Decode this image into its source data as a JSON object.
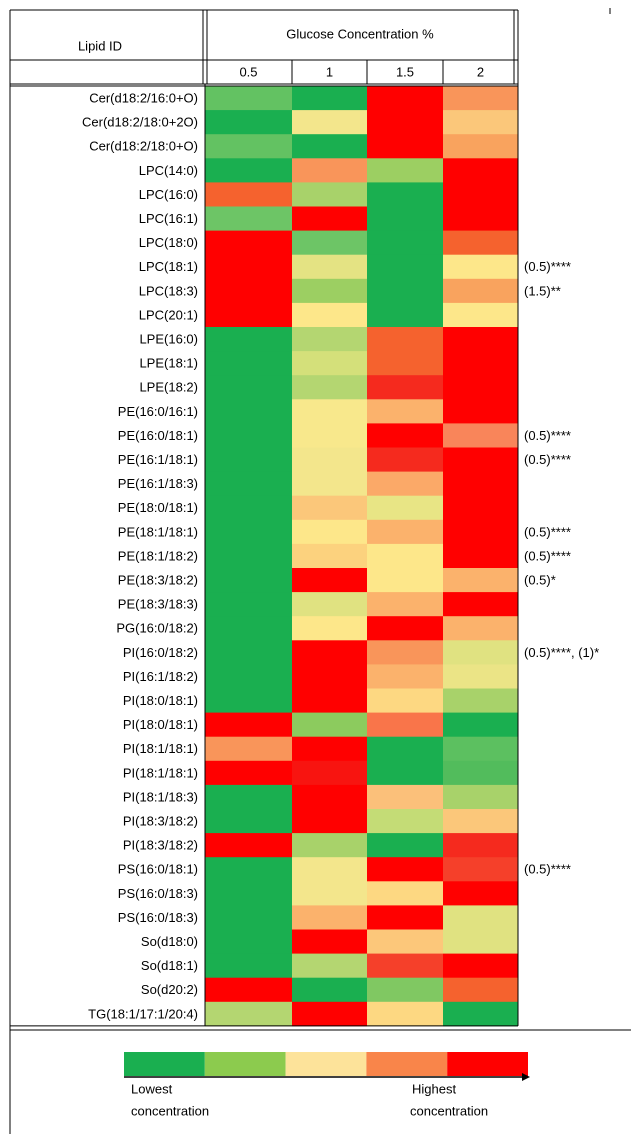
{
  "header": {
    "lipid_id": "Lipid ID",
    "group": "Glucose Concentration %",
    "columns": [
      "0.5",
      "1",
      "1.5",
      "2"
    ]
  },
  "rows": [
    {
      "lipid": "Cer(d18:2/16:0+O)",
      "colors": [
        "#63c262",
        "#1aaf50",
        "#ff0000",
        "#f9955a"
      ]
    },
    {
      "lipid": "Cer(d18:2/18:0+2O)",
      "colors": [
        "#1aaf50",
        "#f3e68c",
        "#ff0000",
        "#fbc77a"
      ]
    },
    {
      "lipid": "Cer(d18:2/18:0+O)",
      "colors": [
        "#63c262",
        "#1aaf50",
        "#ff0000",
        "#f9a35e"
      ]
    },
    {
      "lipid": "LPC(14:0)",
      "colors": [
        "#1aaf50",
        "#f9955a",
        "#9ccf62",
        "#ff0000"
      ]
    },
    {
      "lipid": "LPC(16:0)",
      "colors": [
        "#f5622e",
        "#a8d26a",
        "#1aaf50",
        "#ff0000"
      ]
    },
    {
      "lipid": "LPC(16:1)",
      "colors": [
        "#6dc566",
        "#ff0000",
        "#1aaf50",
        "#ff0000"
      ]
    },
    {
      "lipid": "LPC(18:0)",
      "colors": [
        "#ff0000",
        "#6dc566",
        "#1aaf50",
        "#f5622e"
      ]
    },
    {
      "lipid": "LPC(18:1)",
      "colors": [
        "#ff0000",
        "#e4e383",
        "#1aaf50",
        "#fde78a"
      ],
      "note": "(0.5)****"
    },
    {
      "lipid": "LPC(18:3)",
      "colors": [
        "#ff0000",
        "#9ccf62",
        "#1aaf50",
        "#f9a35e"
      ],
      "note": "(1.5)**"
    },
    {
      "lipid": "LPC(20:1)",
      "colors": [
        "#ff0000",
        "#fde78a",
        "#1aaf50",
        "#fde78a"
      ]
    },
    {
      "lipid": "LPE(16:0)",
      "colors": [
        "#1aaf50",
        "#b4d671",
        "#f5622e",
        "#ff0000"
      ]
    },
    {
      "lipid": "LPE(18:1)",
      "colors": [
        "#1aaf50",
        "#d4e07a",
        "#f5622e",
        "#ff0000"
      ]
    },
    {
      "lipid": "LPE(18:2)",
      "colors": [
        "#1aaf50",
        "#b4d671",
        "#f52a1e",
        "#ff0000"
      ]
    },
    {
      "lipid": "PE(16:0/16:1)",
      "colors": [
        "#1aaf50",
        "#f8e88c",
        "#fbb26c",
        "#ff0000"
      ]
    },
    {
      "lipid": "PE(16:0/18:1)",
      "colors": [
        "#1aaf50",
        "#f8e88c",
        "#ff0000",
        "#f9855a"
      ],
      "note": "(0.5)****"
    },
    {
      "lipid": "PE(16:1/18:1)",
      "colors": [
        "#1aaf50",
        "#f3e68c",
        "#f52a1e",
        "#ff0000"
      ],
      "note": "(0.5)****"
    },
    {
      "lipid": "PE(16:1/18:3)",
      "colors": [
        "#1aaf50",
        "#f3e68c",
        "#fba968",
        "#ff0000"
      ]
    },
    {
      "lipid": "PE(18:0/18:1)",
      "colors": [
        "#1aaf50",
        "#fbc77a",
        "#e8e585",
        "#ff0000"
      ]
    },
    {
      "lipid": "PE(18:1/18:1)",
      "colors": [
        "#1aaf50",
        "#fde78a",
        "#fbb26c",
        "#ff0000"
      ],
      "note": "(0.5)****"
    },
    {
      "lipid": "PE(18:1/18:2)",
      "colors": [
        "#1aaf50",
        "#fcd27e",
        "#fde78a",
        "#ff0000"
      ],
      "note": "(0.5)****"
    },
    {
      "lipid": "PE(18:3/18:2)",
      "colors": [
        "#1aaf50",
        "#ff0000",
        "#fde78a",
        "#fbb26c"
      ],
      "note": "(0.5)*"
    },
    {
      "lipid": "PE(18:3/18:3)",
      "colors": [
        "#1aaf50",
        "#e0e281",
        "#fbb26c",
        "#ff0000"
      ]
    },
    {
      "lipid": "PG(16:0/18:2)",
      "colors": [
        "#1aaf50",
        "#fde78a",
        "#ff0000",
        "#fbb26c"
      ]
    },
    {
      "lipid": "PI(16:0/18:2)",
      "colors": [
        "#1aaf50",
        "#ff0000",
        "#f9955a",
        "#e0e281"
      ],
      "note": "(0.5)****, (1)*"
    },
    {
      "lipid": "PI(16:1/18:2)",
      "colors": [
        "#1aaf50",
        "#ff0000",
        "#fbb26c",
        "#ebe486"
      ]
    },
    {
      "lipid": "PI(18:0/18:1)",
      "colors": [
        "#1aaf50",
        "#ff0000",
        "#fdd882",
        "#a8d26a"
      ]
    },
    {
      "lipid": "PI(18:0/18:1)",
      "colors": [
        "#ff0000",
        "#8ccb5e",
        "#f9754a",
        "#1aaf50"
      ]
    },
    {
      "lipid": "PI(18:1/18:1)",
      "colors": [
        "#f9955a",
        "#ff0000",
        "#1aaf50",
        "#5cc060"
      ]
    },
    {
      "lipid": "PI(18:1/18:1)",
      "colors": [
        "#ff0000",
        "#f81410",
        "#1aaf50",
        "#52bc5c"
      ]
    },
    {
      "lipid": "PI(18:1/18:3)",
      "colors": [
        "#1aaf50",
        "#ff0000",
        "#fbc07a",
        "#a8d26a"
      ]
    },
    {
      "lipid": "PI(18:3/18:2)",
      "colors": [
        "#1aaf50",
        "#ff0000",
        "#c4dc76",
        "#fbc77a"
      ]
    },
    {
      "lipid": "PI(18:3/18:2)",
      "colors": [
        "#ff0000",
        "#a8d26a",
        "#1aaf50",
        "#f52a1e"
      ]
    },
    {
      "lipid": "PS(16:0/18:1)",
      "colors": [
        "#1aaf50",
        "#f3e68c",
        "#ff0000",
        "#f5402a"
      ],
      "note": "(0.5)****"
    },
    {
      "lipid": "PS(16:0/18:3)",
      "colors": [
        "#1aaf50",
        "#f3e68c",
        "#fdd882",
        "#ff0000"
      ]
    },
    {
      "lipid": "PS(16:0/18:3)",
      "colors": [
        "#1aaf50",
        "#fbb26c",
        "#ff0000",
        "#e0e281"
      ]
    },
    {
      "lipid": "So(d18:0)",
      "colors": [
        "#1aaf50",
        "#ff0000",
        "#fcc77a",
        "#e0e281"
      ]
    },
    {
      "lipid": "So(d18:1)",
      "colors": [
        "#1aaf50",
        "#b4d671",
        "#f5402a",
        "#ff0000"
      ]
    },
    {
      "lipid": "So(d20:2)",
      "colors": [
        "#ff0000",
        "#1aaf50",
        "#80c862",
        "#f5622e"
      ]
    },
    {
      "lipid": "TG(18:1/17:1/20:4)",
      "colors": [
        "#b4d671",
        "#ff0000",
        "#fdd882",
        "#1aaf50"
      ]
    }
  ],
  "legend": {
    "colors": [
      "#1aaf50",
      "#8ccb4e",
      "#fde39a",
      "#f9854a",
      "#ff0000"
    ],
    "low": [
      "Lowest",
      "concentration"
    ],
    "high": [
      "Highest",
      "concentration"
    ]
  }
}
